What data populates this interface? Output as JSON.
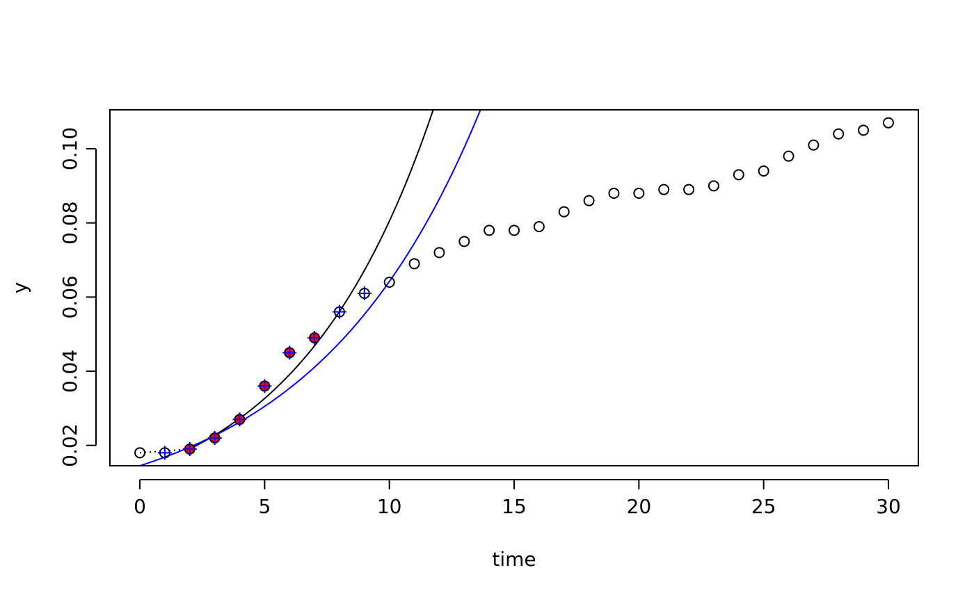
{
  "chart_data": {
    "type": "scatter",
    "title": "",
    "xlabel": "time",
    "ylabel": "y",
    "xlim": [
      -1.2,
      31.2
    ],
    "ylim": [
      0.0145,
      0.1105
    ],
    "xticks": [
      0,
      5,
      10,
      15,
      20,
      25,
      30
    ],
    "yticks": [
      0.02,
      0.04,
      0.06,
      0.08,
      0.1
    ],
    "xtick_labels": [
      "0",
      "5",
      "10",
      "15",
      "20",
      "25",
      "30"
    ],
    "ytick_labels": [
      "0.02",
      "0.04",
      "0.06",
      "0.08",
      "0.10"
    ],
    "grid": false,
    "legend": "none",
    "observations": {
      "x": [
        0,
        1,
        2,
        3,
        4,
        5,
        6,
        7,
        8,
        9,
        10,
        11,
        12,
        13,
        14,
        15,
        16,
        17,
        18,
        19,
        20,
        21,
        22,
        23,
        24,
        25,
        26,
        27,
        28,
        29,
        30
      ],
      "y": [
        0.018,
        0.018,
        0.019,
        0.022,
        0.027,
        0.036,
        0.045,
        0.049,
        0.056,
        0.061,
        0.064,
        0.069,
        0.072,
        0.075,
        0.078,
        0.078,
        0.079,
        0.083,
        0.086,
        0.088,
        0.088,
        0.089,
        0.089,
        0.09,
        0.093,
        0.094,
        0.098,
        0.101,
        0.104,
        0.105,
        0.107
      ],
      "marker": "open-circle",
      "color": "#000000"
    },
    "window_points": {
      "x": [
        1,
        2,
        3,
        4,
        5,
        6,
        7,
        8,
        9
      ],
      "marker": "crosshair",
      "color": "#0000ff"
    },
    "fit_points": {
      "x": [
        2,
        3,
        4,
        5,
        6,
        7
      ],
      "marker": "filled-circle",
      "color": "#ff0000"
    },
    "lag_segment": {
      "x": [
        0,
        2
      ],
      "y": [
        0.018,
        0.019
      ],
      "style": "dotted",
      "color": "#000000"
    },
    "fit_curves": [
      {
        "color": "#000000",
        "style": "solid",
        "model": "exponential",
        "x": [
          2,
          4,
          6,
          8,
          10,
          10.68
        ],
        "y": [
          0.019,
          0.0273,
          0.0391,
          0.0561,
          0.0805,
          0.1105
        ]
      },
      {
        "color": "#0000ff",
        "style": "solid",
        "model": "exponential",
        "x": [
          0,
          2,
          4,
          6,
          8,
          10,
          11.95
        ],
        "y": [
          0.0145,
          0.0196,
          0.0264,
          0.0355,
          0.0477,
          0.0642,
          0.1105
        ]
      }
    ]
  }
}
